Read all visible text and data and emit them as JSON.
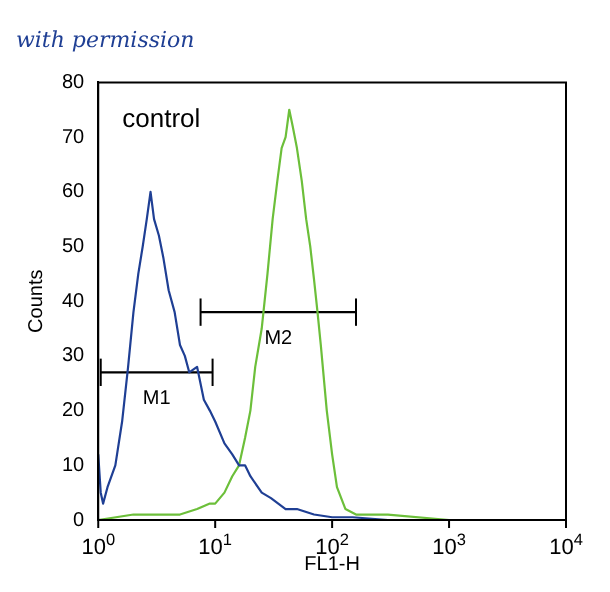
{
  "chart_data": {
    "type": "line",
    "title": "with permission",
    "xlabel": "FL1-H",
    "ylabel": "Counts",
    "log": "x",
    "xlim": [
      1,
      10000
    ],
    "xticks": [
      {
        "value": 1,
        "label": "10$^{0}$"
      },
      {
        "value": 10,
        "label": "10$^{1}$"
      },
      {
        "value": 100,
        "label": "10$^{2}$"
      },
      {
        "value": 1000,
        "label": "10$^{3}$"
      },
      {
        "value": 10000,
        "label": "10$^{4}$"
      }
    ],
    "ylim": [
      0,
      80
    ],
    "yticks": [
      0,
      10,
      20,
      30,
      40,
      50,
      60,
      70,
      80
    ],
    "grid": false,
    "legend": false,
    "marker": "none",
    "line_style": "solid",
    "series": [
      {
        "color": "#1f3f94",
        "x": [
          1,
          1.05,
          1.1,
          1.2,
          1.4,
          1.6,
          1.8,
          2,
          2.2,
          2.4,
          2.6,
          2.8,
          3,
          3.3,
          3.6,
          4,
          4.5,
          5,
          5.5,
          6,
          7,
          8,
          9,
          10,
          12,
          14,
          16,
          18,
          20,
          25,
          30,
          40,
          50,
          70,
          100,
          150,
          300
        ],
        "values": [
          12,
          5,
          3,
          6,
          10,
          18,
          28,
          38,
          45,
          50,
          55,
          60,
          55,
          52,
          48,
          42,
          38,
          32,
          30,
          27,
          28,
          22,
          20,
          18,
          14,
          12,
          10,
          10,
          8,
          5,
          4,
          2,
          2,
          1,
          0.5,
          0.5,
          0
        ]
      },
      {
        "color": "#6cbf3a",
        "x": [
          1,
          2,
          3,
          5,
          7,
          9,
          10,
          12,
          14,
          16,
          18,
          20,
          22,
          25,
          28,
          31,
          34,
          37,
          40,
          43,
          46,
          50,
          55,
          60,
          65,
          70,
          75,
          80,
          90,
          100,
          110,
          130,
          160,
          200,
          300,
          1000
        ],
        "values": [
          0,
          1,
          1,
          1,
          2,
          3,
          3,
          5,
          8,
          10,
          15,
          20,
          28,
          35,
          45,
          55,
          62,
          68,
          70,
          75,
          72,
          68,
          62,
          55,
          50,
          44,
          38,
          32,
          20,
          12,
          6,
          2,
          1,
          1,
          1,
          0
        ]
      },
      {
        "name": "M1",
        "color": "#000000",
        "x": [
          1.05,
          9.5
        ],
        "values": [
          27,
          27
        ],
        "errors": [
          2.5,
          2.5
        ]
      },
      {
        "name": "M2",
        "color": "#000000",
        "x": [
          7.5,
          160
        ],
        "values": [
          38,
          38
        ],
        "errors": [
          2.5,
          2.5
        ]
      }
    ],
    "annotations": [
      "control"
    ]
  }
}
